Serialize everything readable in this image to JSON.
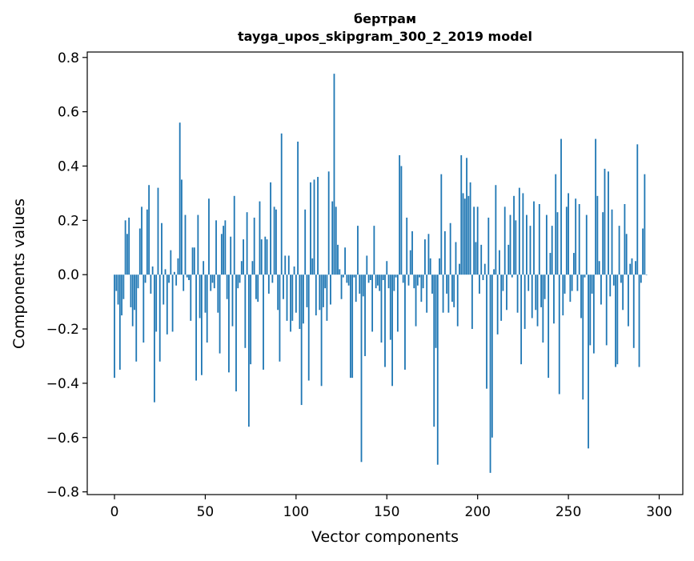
{
  "chart_data": {
    "type": "bar",
    "title_lines": [
      "бертрам",
      "tayga_upos_skipgram_300_2_2019 model"
    ],
    "xlabel": "Vector components",
    "ylabel": "Components values",
    "xlim": [
      -15,
      313
    ],
    "ylim": [
      -0.81,
      0.82
    ],
    "xticks": [
      0,
      50,
      100,
      150,
      200,
      250,
      300
    ],
    "xtick_labels": [
      "0",
      "50",
      "100",
      "150",
      "200",
      "250",
      "300"
    ],
    "yticks": [
      -0.8,
      -0.6,
      -0.4,
      -0.2,
      0.0,
      0.2,
      0.4,
      0.6,
      0.8
    ],
    "ytick_labels": [
      "−0.8",
      "−0.6",
      "−0.4",
      "−0.2",
      "0.0",
      "0.2",
      "0.4",
      "0.6",
      "0.8"
    ],
    "grid": false,
    "bar_color": "#1f77b4",
    "values": [
      -0.38,
      -0.06,
      -0.11,
      -0.35,
      -0.15,
      -0.09,
      0.2,
      0.15,
      0.21,
      -0.12,
      -0.19,
      -0.13,
      -0.32,
      -0.05,
      0.17,
      0.25,
      -0.25,
      -0.03,
      0.24,
      0.33,
      -0.07,
      0.03,
      -0.47,
      -0.21,
      0.32,
      -0.32,
      0.19,
      -0.11,
      0.02,
      -0.22,
      -0.03,
      0.09,
      -0.21,
      0.01,
      -0.04,
      0.06,
      0.56,
      0.35,
      -0.06,
      0.22,
      -0.01,
      -0.02,
      -0.17,
      0.1,
      0.1,
      -0.39,
      0.22,
      -0.16,
      -0.37,
      0.05,
      -0.14,
      -0.25,
      0.28,
      -0.06,
      -0.03,
      -0.05,
      0.2,
      -0.14,
      -0.29,
      0.15,
      0.18,
      0.2,
      -0.09,
      -0.36,
      0.14,
      -0.19,
      0.29,
      -0.43,
      -0.05,
      -0.03,
      0.05,
      0.13,
      -0.27,
      0.23,
      -0.56,
      -0.33,
      0.05,
      0.21,
      -0.09,
      -0.1,
      0.27,
      0.13,
      -0.35,
      0.14,
      0.13,
      -0.07,
      0.34,
      -0.03,
      0.25,
      0.24,
      -0.13,
      -0.32,
      0.52,
      -0.09,
      0.07,
      -0.17,
      0.07,
      -0.21,
      -0.17,
      0.03,
      -0.14,
      0.49,
      -0.2,
      -0.48,
      -0.18,
      0.24,
      -0.12,
      -0.39,
      0.34,
      0.06,
      0.35,
      -0.15,
      0.36,
      -0.13,
      -0.41,
      -0.12,
      -0.05,
      -0.17,
      0.38,
      -0.11,
      0.27,
      0.74,
      0.25,
      0.11,
      0.02,
      -0.09,
      -0.01,
      0.1,
      -0.03,
      -0.04,
      -0.38,
      -0.38,
      -0.01,
      -0.1,
      0.18,
      -0.07,
      -0.69,
      -0.08,
      -0.3,
      0.07,
      -0.03,
      -0.02,
      -0.21,
      0.18,
      -0.05,
      -0.04,
      -0.06,
      -0.25,
      -0.02,
      -0.34,
      0.05,
      -0.05,
      -0.24,
      -0.41,
      -0.06,
      -0.01,
      -0.21,
      0.44,
      0.4,
      -0.03,
      -0.35,
      0.21,
      -0.04,
      0.09,
      0.16,
      -0.05,
      -0.19,
      -0.04,
      -0.01,
      -0.1,
      -0.05,
      0.13,
      -0.14,
      0.15,
      0.06,
      -0.07,
      -0.56,
      -0.27,
      -0.7,
      0.06,
      0.37,
      -0.14,
      0.16,
      -0.07,
      -0.14,
      0.19,
      -0.1,
      -0.12,
      0.12,
      -0.19,
      0.04,
      0.44,
      0.3,
      0.28,
      0.43,
      0.29,
      0.34,
      -0.2,
      0.25,
      0.12,
      0.25,
      -0.07,
      0.11,
      -0.02,
      0.04,
      -0.42,
      0.21,
      -0.73,
      -0.6,
      0.02,
      0.33,
      -0.22,
      0.09,
      -0.17,
      -0.06,
      0.25,
      -0.13,
      0.11,
      0.22,
      -0.01,
      0.29,
      0.2,
      -0.14,
      0.32,
      -0.33,
      0.3,
      -0.2,
      0.22,
      -0.06,
      0.18,
      -0.16,
      0.27,
      -0.13,
      -0.19,
      0.26,
      -0.12,
      -0.25,
      -0.09,
      0.22,
      -0.38,
      0.08,
      0.18,
      -0.18,
      0.37,
      0.23,
      -0.44,
      0.5,
      -0.15,
      -0.07,
      0.25,
      0.3,
      -0.1,
      -0.06,
      0.08,
      0.28,
      -0.06,
      0.26,
      -0.16,
      -0.46,
      -0.01,
      0.22,
      -0.64,
      -0.26,
      -0.07,
      -0.29,
      0.5,
      0.29,
      0.05,
      -0.11,
      0.23,
      0.39,
      -0.26,
      0.38,
      -0.08,
      0.24,
      -0.04,
      -0.34,
      -0.33,
      0.18,
      -0.03,
      -0.13,
      0.26,
      0.15,
      -0.19,
      0.04,
      0.06,
      -0.27,
      0.05,
      0.48,
      -0.34,
      -0.03,
      0.17,
      0.37,
      0.0
    ]
  }
}
